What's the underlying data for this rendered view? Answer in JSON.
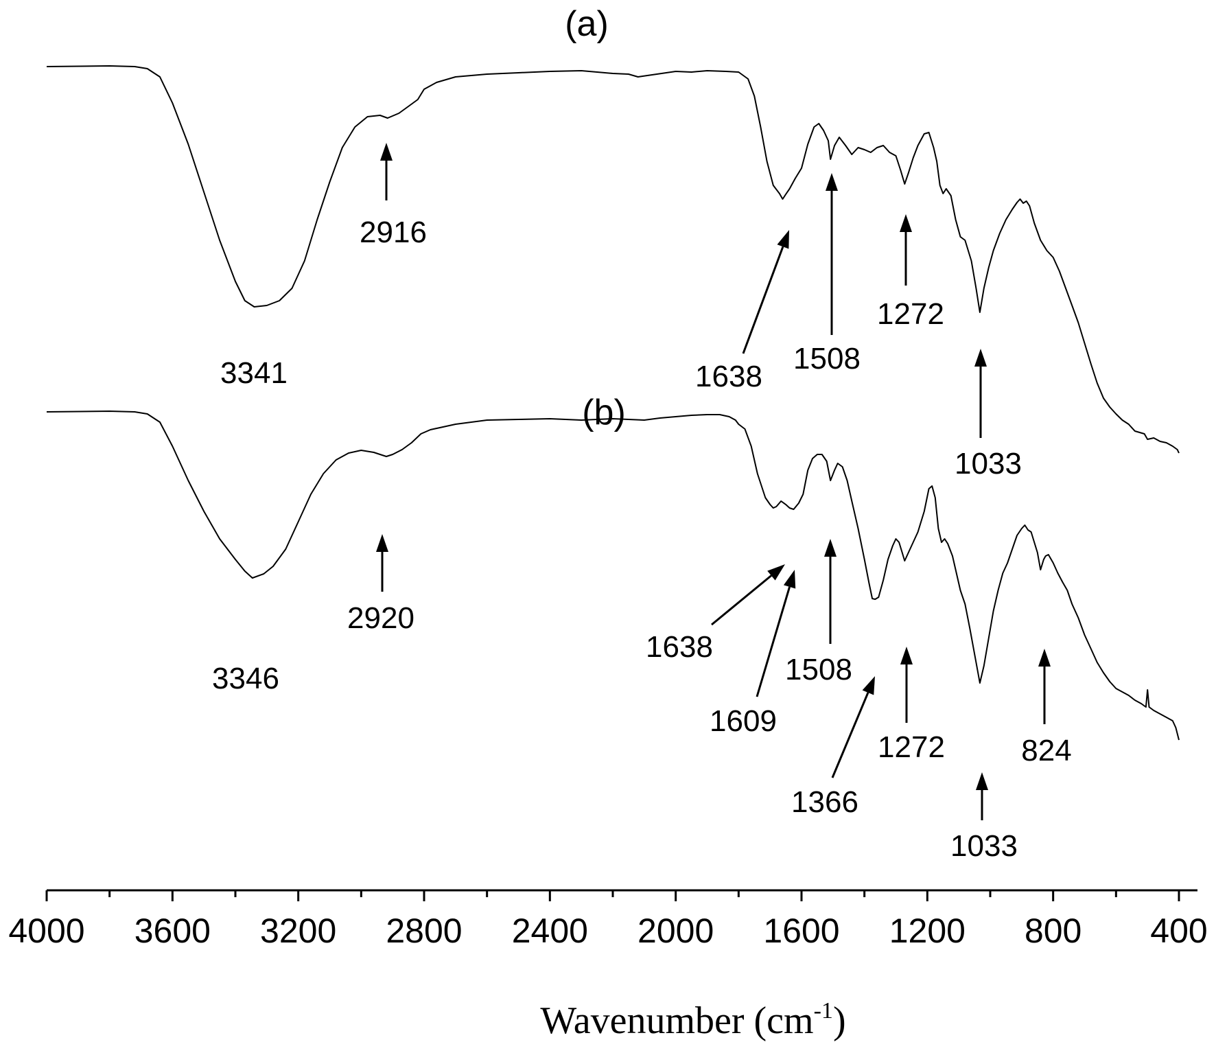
{
  "chart_data": {
    "type": "line",
    "title": "",
    "xlabel": {
      "main": "Wavenumber  (cm",
      "sup": "-1",
      "tail": ")"
    },
    "ylabel": "",
    "x_reversed": true,
    "xlim": [
      4000,
      400
    ],
    "x_ticks": [
      4000,
      3600,
      3200,
      2800,
      2400,
      2000,
      1600,
      1200,
      800,
      400
    ],
    "x_minor_ticks": [
      3800,
      3400,
      3000,
      2600,
      2200,
      1800,
      1400,
      1000,
      600
    ],
    "y_ticks_shown": false,
    "grid": false,
    "series": [
      {
        "panel": "(a)",
        "points": [
          [
            4000,
            97
          ],
          [
            3800,
            96
          ],
          [
            3720,
            97
          ],
          [
            3680,
            100
          ],
          [
            3640,
            112
          ],
          [
            3600,
            150
          ],
          [
            3550,
            210
          ],
          [
            3500,
            280
          ],
          [
            3450,
            350
          ],
          [
            3400,
            410
          ],
          [
            3370,
            438
          ],
          [
            3340,
            447
          ],
          [
            3300,
            445
          ],
          [
            3260,
            438
          ],
          [
            3220,
            420
          ],
          [
            3180,
            380
          ],
          [
            3140,
            320
          ],
          [
            3100,
            265
          ],
          [
            3060,
            215
          ],
          [
            3020,
            185
          ],
          [
            2980,
            170
          ],
          [
            2940,
            168
          ],
          [
            2916,
            172
          ],
          [
            2880,
            165
          ],
          [
            2850,
            155
          ],
          [
            2820,
            145
          ],
          [
            2800,
            130
          ],
          [
            2760,
            120
          ],
          [
            2700,
            112
          ],
          [
            2600,
            108
          ],
          [
            2500,
            106
          ],
          [
            2400,
            104
          ],
          [
            2300,
            103
          ],
          [
            2250,
            105
          ],
          [
            2200,
            107
          ],
          [
            2150,
            108
          ],
          [
            2120,
            112
          ],
          [
            2090,
            110
          ],
          [
            2060,
            108
          ],
          [
            2000,
            104
          ],
          [
            1950,
            105
          ],
          [
            1900,
            103
          ],
          [
            1840,
            104
          ],
          [
            1800,
            105
          ],
          [
            1770,
            115
          ],
          [
            1750,
            140
          ],
          [
            1730,
            185
          ],
          [
            1710,
            235
          ],
          [
            1690,
            270
          ],
          [
            1670,
            282
          ],
          [
            1660,
            290
          ],
          [
            1650,
            283
          ],
          [
            1638,
            275
          ],
          [
            1620,
            260
          ],
          [
            1600,
            245
          ],
          [
            1580,
            210
          ],
          [
            1560,
            185
          ],
          [
            1545,
            180
          ],
          [
            1530,
            190
          ],
          [
            1515,
            205
          ],
          [
            1508,
            232
          ],
          [
            1495,
            212
          ],
          [
            1480,
            200
          ],
          [
            1460,
            212
          ],
          [
            1440,
            225
          ],
          [
            1420,
            215
          ],
          [
            1400,
            218
          ],
          [
            1380,
            222
          ],
          [
            1360,
            215
          ],
          [
            1340,
            212
          ],
          [
            1320,
            222
          ],
          [
            1300,
            227
          ],
          [
            1285,
            248
          ],
          [
            1272,
            268
          ],
          [
            1260,
            252
          ],
          [
            1245,
            230
          ],
          [
            1230,
            212
          ],
          [
            1210,
            195
          ],
          [
            1195,
            193
          ],
          [
            1180,
            215
          ],
          [
            1170,
            235
          ],
          [
            1160,
            270
          ],
          [
            1150,
            282
          ],
          [
            1140,
            275
          ],
          [
            1125,
            285
          ],
          [
            1110,
            320
          ],
          [
            1095,
            345
          ],
          [
            1080,
            350
          ],
          [
            1060,
            380
          ],
          [
            1045,
            420
          ],
          [
            1033,
            455
          ],
          [
            1020,
            420
          ],
          [
            1005,
            390
          ],
          [
            990,
            365
          ],
          [
            970,
            340
          ],
          [
            950,
            320
          ],
          [
            930,
            305
          ],
          [
            915,
            295
          ],
          [
            905,
            290
          ],
          [
            895,
            296
          ],
          [
            885,
            293
          ],
          [
            875,
            300
          ],
          [
            860,
            325
          ],
          [
            840,
            350
          ],
          [
            820,
            365
          ],
          [
            800,
            375
          ],
          [
            780,
            395
          ],
          [
            760,
            420
          ],
          [
            740,
            445
          ],
          [
            720,
            470
          ],
          [
            700,
            500
          ],
          [
            680,
            530
          ],
          [
            660,
            558
          ],
          [
            640,
            580
          ],
          [
            620,
            593
          ],
          [
            600,
            603
          ],
          [
            580,
            612
          ],
          [
            560,
            618
          ],
          [
            540,
            628
          ],
          [
            525,
            630
          ],
          [
            510,
            632
          ],
          [
            500,
            640
          ],
          [
            480,
            638
          ],
          [
            460,
            643
          ],
          [
            440,
            645
          ],
          [
            420,
            650
          ],
          [
            405,
            655
          ],
          [
            400,
            660
          ]
        ]
      },
      {
        "panel": "(b)",
        "points": [
          [
            4000,
            600
          ],
          [
            3800,
            599
          ],
          [
            3720,
            600
          ],
          [
            3680,
            603
          ],
          [
            3640,
            615
          ],
          [
            3600,
            650
          ],
          [
            3550,
            700
          ],
          [
            3500,
            745
          ],
          [
            3450,
            785
          ],
          [
            3400,
            815
          ],
          [
            3370,
            832
          ],
          [
            3346,
            842
          ],
          [
            3310,
            836
          ],
          [
            3280,
            825
          ],
          [
            3240,
            800
          ],
          [
            3200,
            760
          ],
          [
            3160,
            720
          ],
          [
            3120,
            690
          ],
          [
            3080,
            670
          ],
          [
            3040,
            660
          ],
          [
            3000,
            656
          ],
          [
            2960,
            659
          ],
          [
            2940,
            662
          ],
          [
            2920,
            665
          ],
          [
            2900,
            662
          ],
          [
            2870,
            655
          ],
          [
            2840,
            645
          ],
          [
            2810,
            632
          ],
          [
            2780,
            626
          ],
          [
            2700,
            618
          ],
          [
            2600,
            612
          ],
          [
            2500,
            611
          ],
          [
            2400,
            610
          ],
          [
            2300,
            612
          ],
          [
            2200,
            610
          ],
          [
            2150,
            611
          ],
          [
            2100,
            612
          ],
          [
            2050,
            609
          ],
          [
            2000,
            607
          ],
          [
            1950,
            605
          ],
          [
            1900,
            604
          ],
          [
            1860,
            604
          ],
          [
            1830,
            607
          ],
          [
            1810,
            612
          ],
          [
            1800,
            618
          ],
          [
            1780,
            625
          ],
          [
            1760,
            650
          ],
          [
            1740,
            690
          ],
          [
            1715,
            725
          ],
          [
            1700,
            735
          ],
          [
            1690,
            740
          ],
          [
            1680,
            738
          ],
          [
            1665,
            730
          ],
          [
            1650,
            735
          ],
          [
            1638,
            740
          ],
          [
            1625,
            742
          ],
          [
            1609,
            733
          ],
          [
            1595,
            720
          ],
          [
            1580,
            685
          ],
          [
            1565,
            668
          ],
          [
            1550,
            662
          ],
          [
            1535,
            662
          ],
          [
            1520,
            672
          ],
          [
            1508,
            700
          ],
          [
            1495,
            685
          ],
          [
            1485,
            675
          ],
          [
            1470,
            680
          ],
          [
            1455,
            700
          ],
          [
            1440,
            730
          ],
          [
            1420,
            770
          ],
          [
            1400,
            815
          ],
          [
            1385,
            850
          ],
          [
            1375,
            872
          ],
          [
            1366,
            873
          ],
          [
            1355,
            870
          ],
          [
            1340,
            845
          ],
          [
            1325,
            815
          ],
          [
            1310,
            795
          ],
          [
            1300,
            785
          ],
          [
            1290,
            790
          ],
          [
            1280,
            805
          ],
          [
            1272,
            817
          ],
          [
            1260,
            805
          ],
          [
            1245,
            790
          ],
          [
            1230,
            775
          ],
          [
            1210,
            745
          ],
          [
            1195,
            712
          ],
          [
            1185,
            708
          ],
          [
            1175,
            725
          ],
          [
            1165,
            770
          ],
          [
            1155,
            790
          ],
          [
            1145,
            785
          ],
          [
            1135,
            792
          ],
          [
            1120,
            810
          ],
          [
            1110,
            830
          ],
          [
            1095,
            860
          ],
          [
            1080,
            880
          ],
          [
            1065,
            915
          ],
          [
            1045,
            965
          ],
          [
            1033,
            995
          ],
          [
            1020,
            970
          ],
          [
            1005,
            930
          ],
          [
            990,
            890
          ],
          [
            975,
            860
          ],
          [
            960,
            835
          ],
          [
            945,
            820
          ],
          [
            930,
            800
          ],
          [
            915,
            780
          ],
          [
            900,
            770
          ],
          [
            890,
            765
          ],
          [
            880,
            772
          ],
          [
            870,
            775
          ],
          [
            860,
            790
          ],
          [
            850,
            805
          ],
          [
            840,
            830
          ],
          [
            830,
            815
          ],
          [
            824,
            810
          ],
          [
            815,
            808
          ],
          [
            800,
            820
          ],
          [
            785,
            835
          ],
          [
            770,
            848
          ],
          [
            755,
            860
          ],
          [
            740,
            880
          ],
          [
            720,
            900
          ],
          [
            700,
            925
          ],
          [
            680,
            945
          ],
          [
            660,
            965
          ],
          [
            640,
            980
          ],
          [
            620,
            993
          ],
          [
            600,
            1003
          ],
          [
            580,
            1008
          ],
          [
            560,
            1013
          ],
          [
            540,
            1020
          ],
          [
            520,
            1025
          ],
          [
            505,
            1030
          ],
          [
            500,
            1005
          ],
          [
            495,
            1030
          ],
          [
            480,
            1035
          ],
          [
            460,
            1040
          ],
          [
            440,
            1045
          ],
          [
            420,
            1050
          ],
          [
            410,
            1060
          ],
          [
            400,
            1078
          ]
        ]
      }
    ],
    "annotations": [
      {
        "panel": "(a)",
        "text": "3341",
        "x": 3341
      },
      {
        "panel": "(a)",
        "text": "2916",
        "x": 2916
      },
      {
        "panel": "(a)",
        "text": "1638",
        "x": 1638
      },
      {
        "panel": "(a)",
        "text": "1508",
        "x": 1508
      },
      {
        "panel": "(a)",
        "text": "1272",
        "x": 1272
      },
      {
        "panel": "(a)",
        "text": "1033",
        "x": 1033
      },
      {
        "panel": "(b)",
        "text": "3346",
        "x": 3346
      },
      {
        "panel": "(b)",
        "text": "2920",
        "x": 2920
      },
      {
        "panel": "(b)",
        "text": "1638",
        "x": 1638
      },
      {
        "panel": "(b)",
        "text": "1609",
        "x": 1609
      },
      {
        "panel": "(b)",
        "text": "1508",
        "x": 1508
      },
      {
        "panel": "(b)",
        "text": "1366",
        "x": 1366
      },
      {
        "panel": "(b)",
        "text": "1272",
        "x": 1272
      },
      {
        "panel": "(b)",
        "text": "1033",
        "x": 1033
      },
      {
        "panel": "(b)",
        "text": "824",
        "x": 824
      }
    ]
  }
}
